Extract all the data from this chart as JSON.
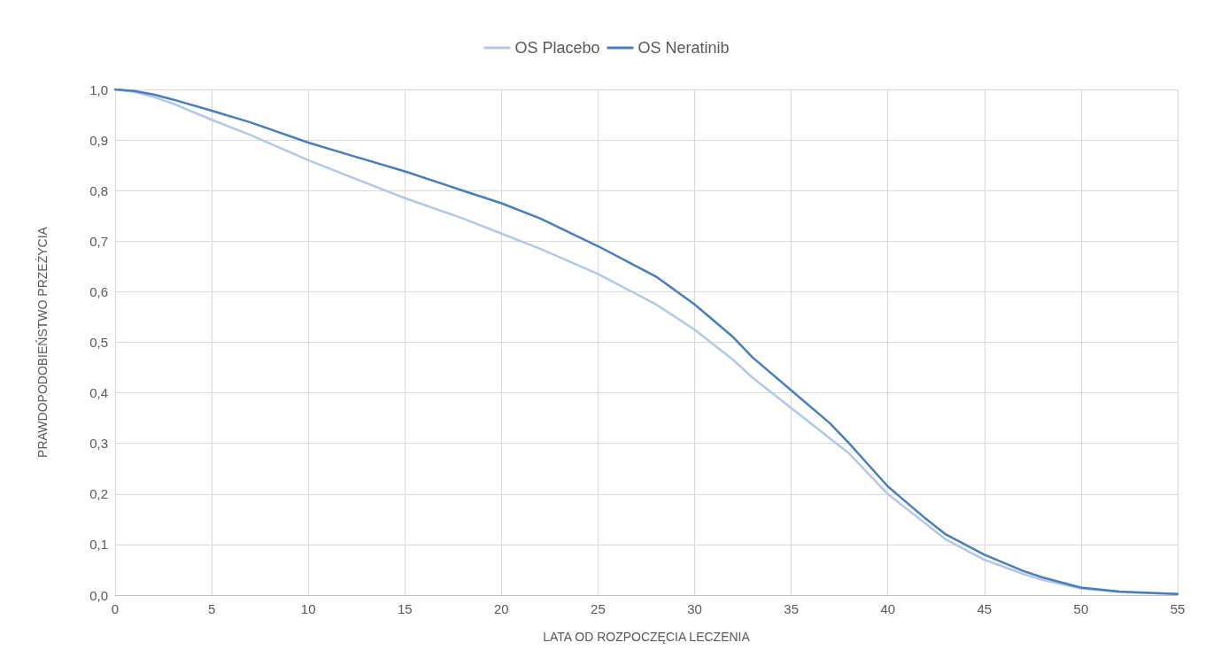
{
  "chart_data": {
    "type": "line",
    "xlabel": "LATA OD ROZPOCZĘCIA LECZENIA",
    "ylabel": "PRAWDOPODOBIEŃSTWO PRZEŻYCIA",
    "series": [
      {
        "name": "OS Placebo",
        "color": "#b4c7e7",
        "x": [
          0,
          1,
          2,
          3,
          5,
          7,
          10,
          12,
          15,
          18,
          20,
          22,
          25,
          27,
          28,
          30,
          32,
          33,
          35,
          37,
          38,
          40,
          42,
          43,
          45,
          47,
          48,
          50,
          52,
          55
        ],
        "values": [
          1.0,
          0.995,
          0.985,
          0.972,
          0.94,
          0.91,
          0.86,
          0.83,
          0.785,
          0.745,
          0.715,
          0.685,
          0.635,
          0.595,
          0.575,
          0.525,
          0.465,
          0.43,
          0.37,
          0.31,
          0.28,
          0.2,
          0.14,
          0.11,
          0.07,
          0.042,
          0.03,
          0.013,
          0.006,
          0.002
        ]
      },
      {
        "name": "OS Neratinib",
        "color": "#4a7ebb",
        "x": [
          0,
          1,
          2,
          3,
          5,
          7,
          10,
          12,
          15,
          18,
          20,
          22,
          25,
          27,
          28,
          30,
          32,
          33,
          35,
          37,
          38,
          40,
          42,
          43,
          45,
          47,
          48,
          50,
          52,
          55
        ],
        "values": [
          1.0,
          0.997,
          0.99,
          0.98,
          0.958,
          0.935,
          0.895,
          0.872,
          0.838,
          0.8,
          0.775,
          0.745,
          0.69,
          0.65,
          0.63,
          0.575,
          0.51,
          0.47,
          0.405,
          0.34,
          0.3,
          0.215,
          0.15,
          0.12,
          0.08,
          0.048,
          0.035,
          0.015,
          0.007,
          0.002
        ]
      }
    ],
    "xlim": [
      0,
      55
    ],
    "xticks": [
      0,
      5,
      10,
      15,
      20,
      25,
      30,
      35,
      40,
      45,
      50,
      55
    ],
    "ylim": [
      0,
      1
    ],
    "yticks": [
      {
        "value": 0,
        "label": "0,0"
      },
      {
        "value": 0.1,
        "label": "0,1"
      },
      {
        "value": 0.2,
        "label": "0,2"
      },
      {
        "value": 0.3,
        "label": "0,3"
      },
      {
        "value": 0.4,
        "label": "0,4"
      },
      {
        "value": 0.5,
        "label": "0,5"
      },
      {
        "value": 0.6,
        "label": "0,6"
      },
      {
        "value": 0.7,
        "label": "0,7"
      },
      {
        "value": 0.8,
        "label": "0,8"
      },
      {
        "value": 0.9,
        "label": "0,9"
      },
      {
        "value": 1,
        "label": "1,0"
      }
    ],
    "grid": true,
    "legend": "top",
    "marker": "none",
    "line_style": "solid"
  }
}
